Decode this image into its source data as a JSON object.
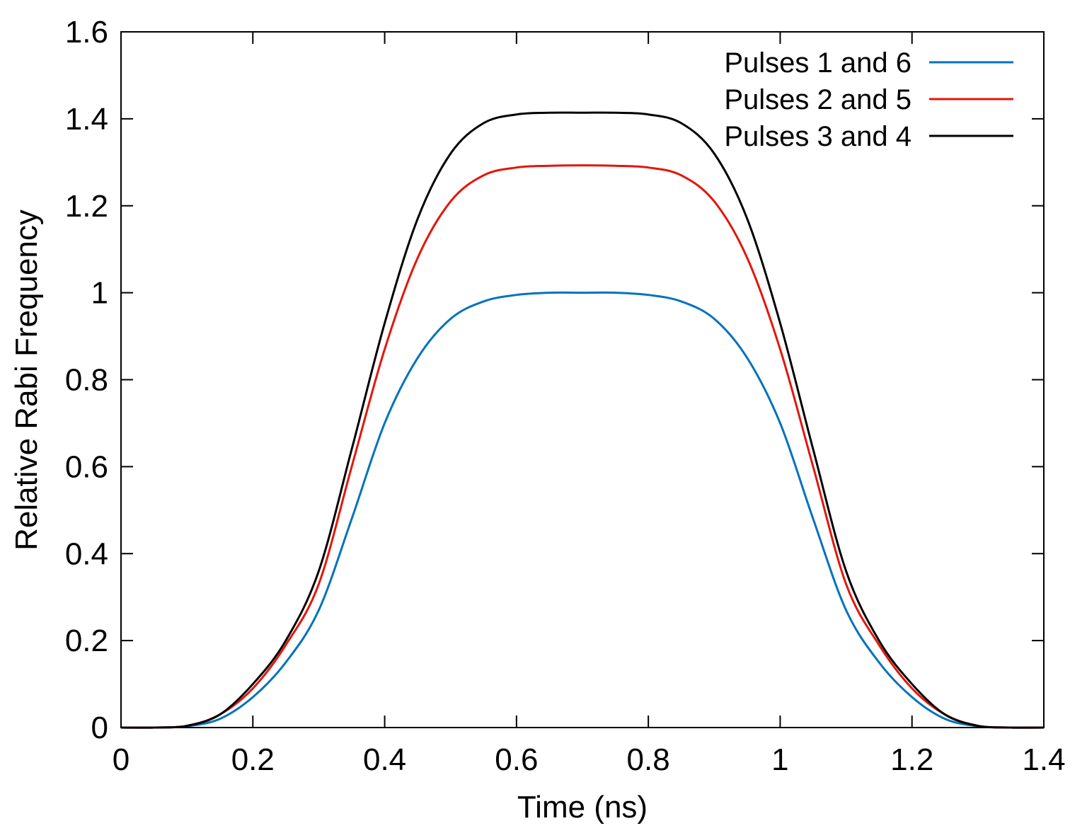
{
  "chart_data": {
    "type": "line",
    "title": "",
    "xlabel": "Time (ns)",
    "ylabel": "Relative Rabi Frequency",
    "xlim": [
      0,
      1.4
    ],
    "ylim": [
      0,
      1.6
    ],
    "xticks": [
      0,
      0.2,
      0.4,
      0.6,
      0.8,
      1,
      1.2,
      1.4
    ],
    "xtick_labels": [
      "0",
      "0.2",
      "0.4",
      "0.6",
      "0.8",
      "1",
      "1.2",
      "1.4"
    ],
    "yticks": [
      0,
      0.2,
      0.4,
      0.6,
      0.8,
      1,
      1.2,
      1.4,
      1.6
    ],
    "ytick_labels": [
      "0",
      "0.2",
      "0.4",
      "0.6",
      "0.8",
      "1",
      "1.2",
      "1.4",
      "1.6"
    ],
    "grid": false,
    "legend_position": "top-right",
    "x": [
      0,
      0.05,
      0.1,
      0.15,
      0.2,
      0.25,
      0.3,
      0.35,
      0.4,
      0.45,
      0.5,
      0.55,
      0.6,
      0.65,
      0.7,
      0.75,
      0.8,
      0.85,
      0.9,
      0.95,
      1.0,
      1.05,
      1.1,
      1.15,
      1.2,
      1.25,
      1.3,
      1.35,
      1.4
    ],
    "series": [
      {
        "name": "Pulses 1 and 6",
        "color": "#0072bd",
        "values": [
          0,
          0,
          0.003,
          0.02,
          0.07,
          0.15,
          0.27,
          0.48,
          0.7,
          0.85,
          0.94,
          0.98,
          0.995,
          1.0,
          1.0,
          1.0,
          0.995,
          0.98,
          0.94,
          0.85,
          0.7,
          0.48,
          0.27,
          0.15,
          0.07,
          0.02,
          0.003,
          0,
          0
        ]
      },
      {
        "name": "Pulses 2 and 5",
        "color": "#e3160b",
        "values": [
          0,
          0,
          0.004,
          0.03,
          0.09,
          0.19,
          0.33,
          0.6,
          0.87,
          1.08,
          1.21,
          1.27,
          1.288,
          1.292,
          1.293,
          1.292,
          1.288,
          1.27,
          1.21,
          1.08,
          0.87,
          0.6,
          0.33,
          0.19,
          0.09,
          0.03,
          0.004,
          0,
          0
        ]
      },
      {
        "name": "Pulses 3 and 4",
        "color": "#000000",
        "values": [
          0,
          0,
          0.004,
          0.03,
          0.1,
          0.2,
          0.36,
          0.64,
          0.93,
          1.17,
          1.32,
          1.39,
          1.41,
          1.414,
          1.414,
          1.414,
          1.41,
          1.39,
          1.32,
          1.17,
          0.93,
          0.64,
          0.36,
          0.2,
          0.1,
          0.03,
          0.004,
          0,
          0
        ]
      }
    ]
  }
}
